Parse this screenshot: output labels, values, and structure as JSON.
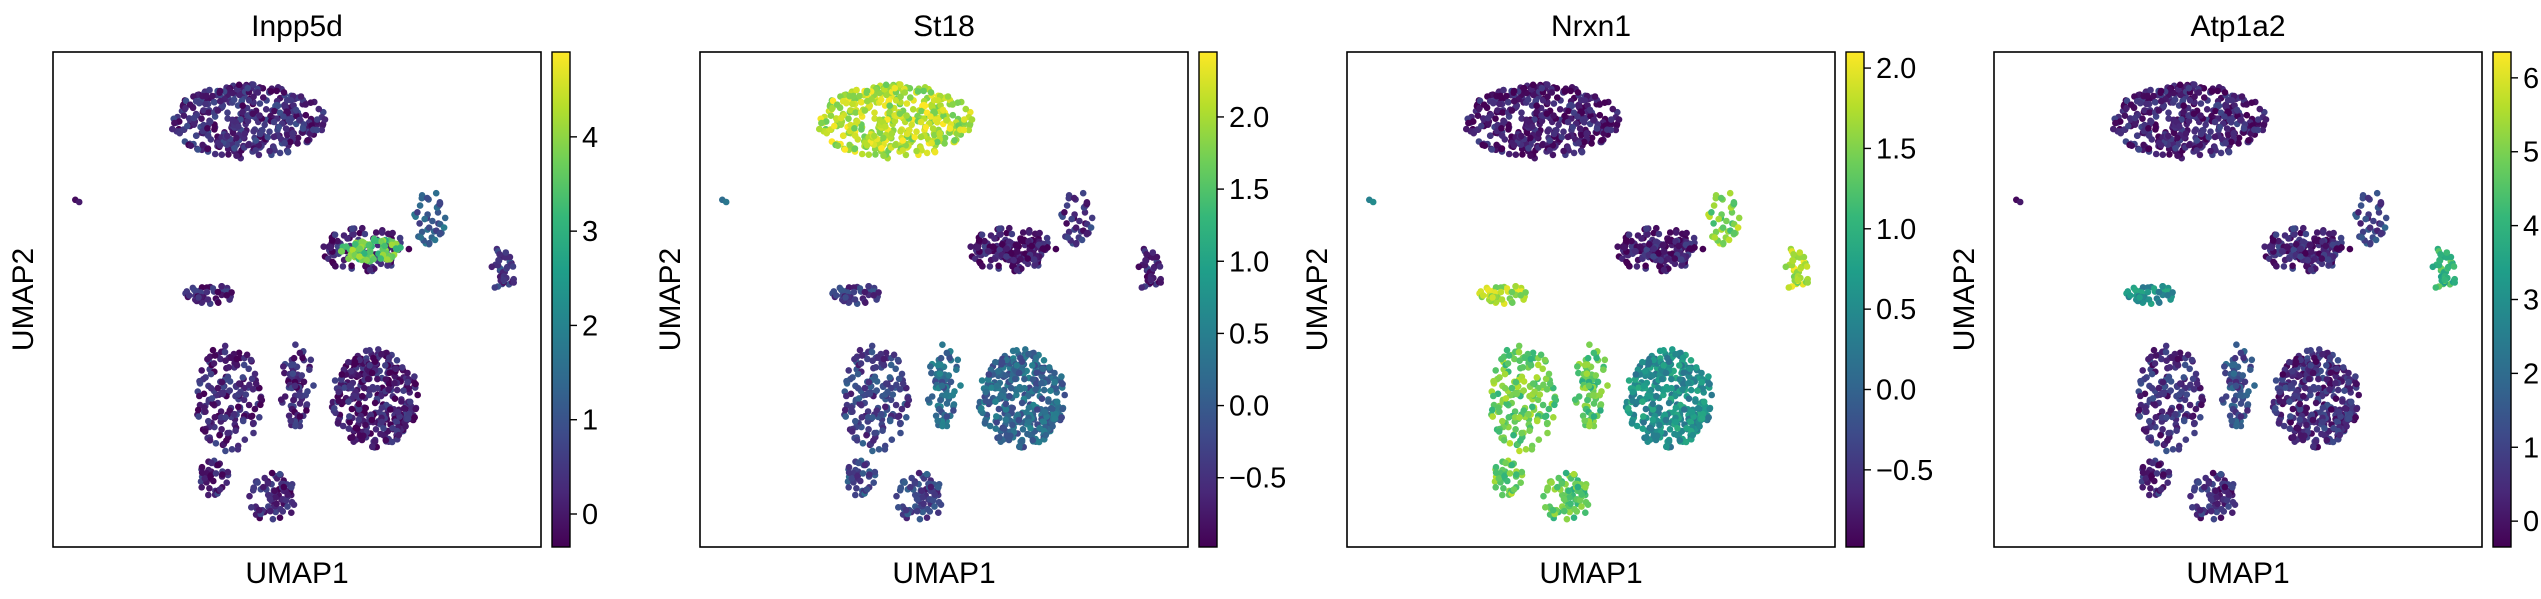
{
  "figure": {
    "colormap": "viridis",
    "colormap_stops": [
      "#440154",
      "#482878",
      "#3e4989",
      "#31688e",
      "#26828e",
      "#1f9e89",
      "#35b779",
      "#6ece58",
      "#b5de2b",
      "#fde725"
    ]
  },
  "chart_data": [
    {
      "type": "scatter",
      "title": "Inpp5d",
      "xlabel": "UMAP1",
      "ylabel": "UMAP2",
      "grid": false,
      "colorbar": {
        "range": [
          -0.35,
          4.9
        ],
        "ticks": [
          0,
          1,
          2,
          3,
          4
        ],
        "tick_labels": [
          "0",
          "1",
          "2",
          "3",
          "4"
        ]
      },
      "cluster_values": {
        "top": 0.3,
        "mid_right": 0.1,
        "bright_blob": 3.6,
        "right_small": 1.2,
        "right_edge": 0.6,
        "left_small": 0.2,
        "left_outlier": 0.2,
        "bottom_left": 0.2,
        "bottom_middle": 0.2,
        "bottom_big": 0.1,
        "bottom_tail": 0.2,
        "bottom_low": 0.2
      }
    },
    {
      "type": "scatter",
      "title": "St18",
      "xlabel": "UMAP1",
      "ylabel": "UMAP2",
      "grid": false,
      "colorbar": {
        "range": [
          -0.98,
          2.45
        ],
        "ticks": [
          -0.5,
          0,
          0.5,
          1,
          1.5,
          2
        ],
        "tick_labels": [
          "−0.5",
          "0.0",
          "0.5",
          "1.0",
          "1.5",
          "2.0"
        ]
      },
      "cluster_values": {
        "top": 2.05,
        "mid_right": -0.7,
        "bright_blob": -0.8,
        "right_small": -0.5,
        "right_edge": -0.6,
        "left_small": -0.4,
        "left_outlier": 0.5,
        "bottom_left": -0.3,
        "bottom_middle": 0.2,
        "bottom_big": 0.15,
        "bottom_tail": -0.2,
        "bottom_low": -0.3
      }
    },
    {
      "type": "scatter",
      "title": "Nrxn1",
      "xlabel": "UMAP1",
      "ylabel": "UMAP2",
      "grid": false,
      "colorbar": {
        "range": [
          -0.98,
          2.1
        ],
        "ticks": [
          -0.5,
          0,
          0.5,
          1,
          1.5,
          2
        ],
        "tick_labels": [
          "−0.5",
          "0.0",
          "0.5",
          "1.0",
          "1.5",
          "2.0"
        ]
      },
      "cluster_values": {
        "top": -0.75,
        "mid_right": -0.8,
        "bright_blob": -0.7,
        "right_small": 1.5,
        "right_edge": 1.8,
        "left_small": 1.7,
        "left_outlier": 0.6,
        "bottom_left": 1.4,
        "bottom_middle": 1.3,
        "bottom_big": 0.55,
        "bottom_tail": 1.4,
        "bottom_low": 1.3
      }
    },
    {
      "type": "scatter",
      "title": "Atp1a2",
      "xlabel": "UMAP1",
      "ylabel": "UMAP2",
      "grid": false,
      "colorbar": {
        "range": [
          -0.35,
          6.35
        ],
        "ticks": [
          0,
          1,
          2,
          3,
          4,
          5,
          6
        ],
        "tick_labels": [
          "0",
          "1",
          "2",
          "3",
          "4",
          "5",
          "6"
        ]
      },
      "cluster_values": {
        "top": 0.3,
        "mid_right": 0.4,
        "bright_blob": 0.3,
        "right_small": 1.0,
        "right_edge": 4.2,
        "left_small": 3.0,
        "left_outlier": 0.3,
        "bottom_left": 0.6,
        "bottom_middle": 1.2,
        "bottom_big": 0.5,
        "bottom_tail": 0.4,
        "bottom_low": 0.5
      }
    }
  ]
}
